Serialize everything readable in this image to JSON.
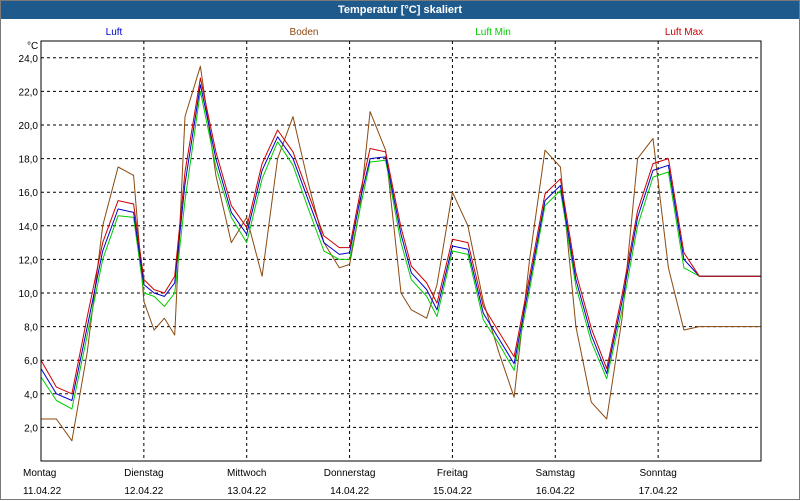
{
  "window": {
    "title": "Temperatur [°C] skaliert"
  },
  "chart_data": {
    "type": "line",
    "title": "Temperatur [°C] skaliert",
    "ylabel": "°C",
    "xlabel": "",
    "ylim": [
      0,
      25
    ],
    "xlim": [
      0,
      7
    ],
    "yticks": [
      "2,0",
      "4,0",
      "6,0",
      "8,0",
      "10,0",
      "12,0",
      "14,0",
      "16,0",
      "18,0",
      "20,0",
      "22,0",
      "24,0"
    ],
    "grid": true,
    "x_labels": [
      {
        "day": "Montag",
        "date": "11.04.22"
      },
      {
        "day": "Dienstag",
        "date": "12.04.22"
      },
      {
        "day": "Mittwoch",
        "date": "13.04.22"
      },
      {
        "day": "Donnerstag",
        "date": "14.04.22"
      },
      {
        "day": "Freitag",
        "date": "15.04.22"
      },
      {
        "day": "Samstag",
        "date": "16.04.22"
      },
      {
        "day": "Sonntag",
        "date": "17.04.22"
      }
    ],
    "x": [
      0,
      0.15,
      0.3,
      0.45,
      0.6,
      0.75,
      0.9,
      1.0,
      1.1,
      1.2,
      1.3,
      1.4,
      1.55,
      1.7,
      1.85,
      2.0,
      2.15,
      2.3,
      2.45,
      2.6,
      2.75,
      2.9,
      3.0,
      3.1,
      3.2,
      3.35,
      3.5,
      3.6,
      3.75,
      3.85,
      4.0,
      4.15,
      4.3,
      4.45,
      4.6,
      4.75,
      4.9,
      5.05,
      5.2,
      5.35,
      5.5,
      5.65,
      5.8,
      5.95,
      6.1,
      6.25,
      6.4,
      6.55,
      6.7,
      6.85,
      7.0
    ],
    "series": [
      {
        "name": "Luft",
        "color": "#0000cc",
        "values": [
          5.5,
          4.0,
          3.6,
          8.0,
          12.5,
          15.0,
          14.8,
          10.5,
          10.0,
          9.8,
          10.6,
          16.5,
          22.4,
          18.0,
          14.8,
          13.5,
          17.3,
          19.3,
          18.0,
          15.5,
          13.0,
          12.3,
          12.4,
          15.5,
          18.0,
          18.1,
          13.5,
          11.2,
          10.2,
          9.0,
          12.8,
          12.6,
          8.8,
          7.3,
          5.8,
          10.6,
          15.5,
          16.4,
          10.8,
          7.5,
          5.2,
          9.5,
          14.5,
          17.3,
          17.6,
          12.0,
          11.0,
          11.0,
          11.0,
          11.0,
          11.0
        ]
      },
      {
        "name": "Boden",
        "color": "#8b4a10",
        "values": [
          2.5,
          2.5,
          1.2,
          6.5,
          14.0,
          17.5,
          17.0,
          9.5,
          7.8,
          8.5,
          7.5,
          20.5,
          23.5,
          17.0,
          13.0,
          14.5,
          11.0,
          18.0,
          20.5,
          16.5,
          13.0,
          11.5,
          11.7,
          15.0,
          20.8,
          18.5,
          10.0,
          9.0,
          8.5,
          10.5,
          16.0,
          14.0,
          9.5,
          6.5,
          3.8,
          12.0,
          18.5,
          17.5,
          8.0,
          3.5,
          2.5,
          8.5,
          18.0,
          19.2,
          11.5,
          7.8,
          8.0,
          8.0,
          8.0,
          8.0,
          8.0
        ]
      },
      {
        "name": "Luft Min",
        "color": "#00cc00",
        "values": [
          5.0,
          3.6,
          3.1,
          7.5,
          12.0,
          14.6,
          14.5,
          10.0,
          9.8,
          9.2,
          10.0,
          15.5,
          22.0,
          17.5,
          14.5,
          13.0,
          16.8,
          19.0,
          17.6,
          15.0,
          12.5,
          12.0,
          12.0,
          15.0,
          17.8,
          17.9,
          13.0,
          10.8,
          9.8,
          8.6,
          12.5,
          12.3,
          8.4,
          7.0,
          5.4,
          10.2,
          15.2,
          16.1,
          10.4,
          7.1,
          4.9,
          9.0,
          14.0,
          16.9,
          17.2,
          11.5,
          11.0,
          11.0,
          11.0,
          11.0,
          11.0
        ]
      },
      {
        "name": "Luft Max",
        "color": "#cc0000",
        "values": [
          6.0,
          4.4,
          4.0,
          8.6,
          13.0,
          15.5,
          15.3,
          10.8,
          10.2,
          10.0,
          11.0,
          17.2,
          22.8,
          18.4,
          15.2,
          13.9,
          17.7,
          19.7,
          18.4,
          15.9,
          13.4,
          12.7,
          12.7,
          15.9,
          18.6,
          18.4,
          13.9,
          11.6,
          10.6,
          9.4,
          13.2,
          13.0,
          9.2,
          7.7,
          6.2,
          11.0,
          15.9,
          16.8,
          11.2,
          7.9,
          5.5,
          9.9,
          14.9,
          17.7,
          18.0,
          12.4,
          11.0,
          11.0,
          11.0,
          11.0,
          11.0
        ]
      }
    ]
  }
}
